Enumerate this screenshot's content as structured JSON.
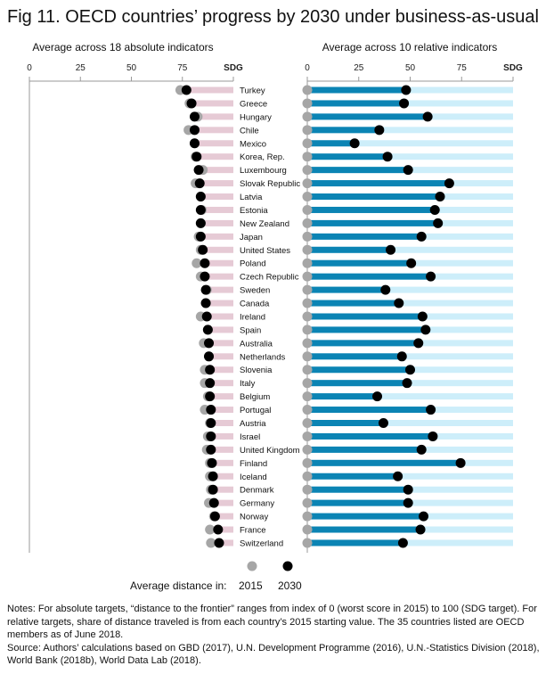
{
  "title": "Fig 11. OECD countries’ progress by 2030 under business-as-usual",
  "notes": [
    "Notes: For absolute targets, “distance to the frontier” ranges from index of 0 (worst score in 2015) to 100 (SDG target). For relative targets, share of distance traveled is from each country’s 2015 starting value. The 35 countries listed are OECD members as of June 2018.",
    "Source:  Authors’ calculations based on GBD (2017), U.N. Development Programme (2016), U.N.-Statistics Division (2018), World Bank (2018b), World Data Lab (2018)."
  ],
  "legend": {
    "label": "Average distance in:",
    "items": [
      {
        "name": "2015",
        "color": "#a6a6a6"
      },
      {
        "name": "2030",
        "color": "#000000"
      }
    ]
  },
  "chart_data": [
    {
      "type": "dot",
      "title": "Average across 18 absolute indicators",
      "xlim": [
        0,
        100
      ],
      "ticks": [
        "0",
        "25",
        "50",
        "75",
        "SDG"
      ],
      "bar_color": "#e6cad5",
      "categories": [
        "Turkey",
        "Greece",
        "Hungary",
        "Chile",
        "Mexico",
        "Korea, Rep.",
        "Luxembourg",
        "Slovak Republic",
        "Latvia",
        "Estonia",
        "New Zealand",
        "Japan",
        "United States",
        "Poland",
        "Czech Republic",
        "Sweden",
        "Canada",
        "Ireland",
        "Spain",
        "Australia",
        "Netherlands",
        "Slovenia",
        "Italy",
        "Belgium",
        "Portugal",
        "Austria",
        "Israel",
        "United Kingdom",
        "Finland",
        "Iceland",
        "Denmark",
        "Germany",
        "Norway",
        "France",
        "Switzerland"
      ],
      "series": [
        {
          "name": "2015",
          "values": [
            74,
            78.5,
            82.5,
            78,
            81,
            81.5,
            85,
            81.5,
            84,
            84.5,
            84,
            83,
            84,
            82,
            84,
            87,
            86.5,
            84,
            87.5,
            85.5,
            88,
            86,
            86,
            87.5,
            86,
            88.5,
            87.5,
            87,
            88.5,
            88.5,
            89,
            88,
            90.5,
            88.5,
            89
          ]
        },
        {
          "name": "2030",
          "values": [
            77,
            79.5,
            81,
            81,
            81,
            82,
            83,
            83.5,
            84,
            84,
            84,
            84,
            85,
            86,
            86,
            86.5,
            86.5,
            87,
            87.5,
            88,
            88,
            88.5,
            88.5,
            88.5,
            89,
            89,
            89,
            89,
            89.5,
            90,
            90,
            90.5,
            91,
            92.5,
            93
          ]
        }
      ]
    },
    {
      "type": "dot",
      "title": "Average across 10 relative indicators",
      "xlim": [
        0,
        100
      ],
      "ticks": [
        "0",
        "25",
        "50",
        "75",
        "SDG"
      ],
      "bar_color": "#cdeefa",
      "fill_color": "#0b84b4",
      "series": [
        {
          "name": "2015",
          "values": [
            0,
            0,
            0,
            0,
            0,
            0,
            0,
            0,
            0,
            0,
            0,
            0,
            0,
            0,
            0,
            0,
            0,
            0,
            0,
            0,
            0,
            0,
            0,
            0,
            0,
            0,
            0,
            0,
            0,
            0,
            0,
            0,
            0,
            0,
            0
          ]
        },
        {
          "name": "2030",
          "values": [
            48,
            47,
            58.5,
            35,
            23,
            39,
            49,
            69,
            64.5,
            62,
            63.5,
            55.5,
            40.5,
            50.5,
            60,
            38,
            44.5,
            56,
            57.5,
            54,
            46,
            50,
            48.5,
            34,
            60,
            37,
            61,
            55.5,
            74.5,
            44,
            49,
            49,
            56.5,
            55,
            46.5
          ]
        }
      ]
    }
  ]
}
